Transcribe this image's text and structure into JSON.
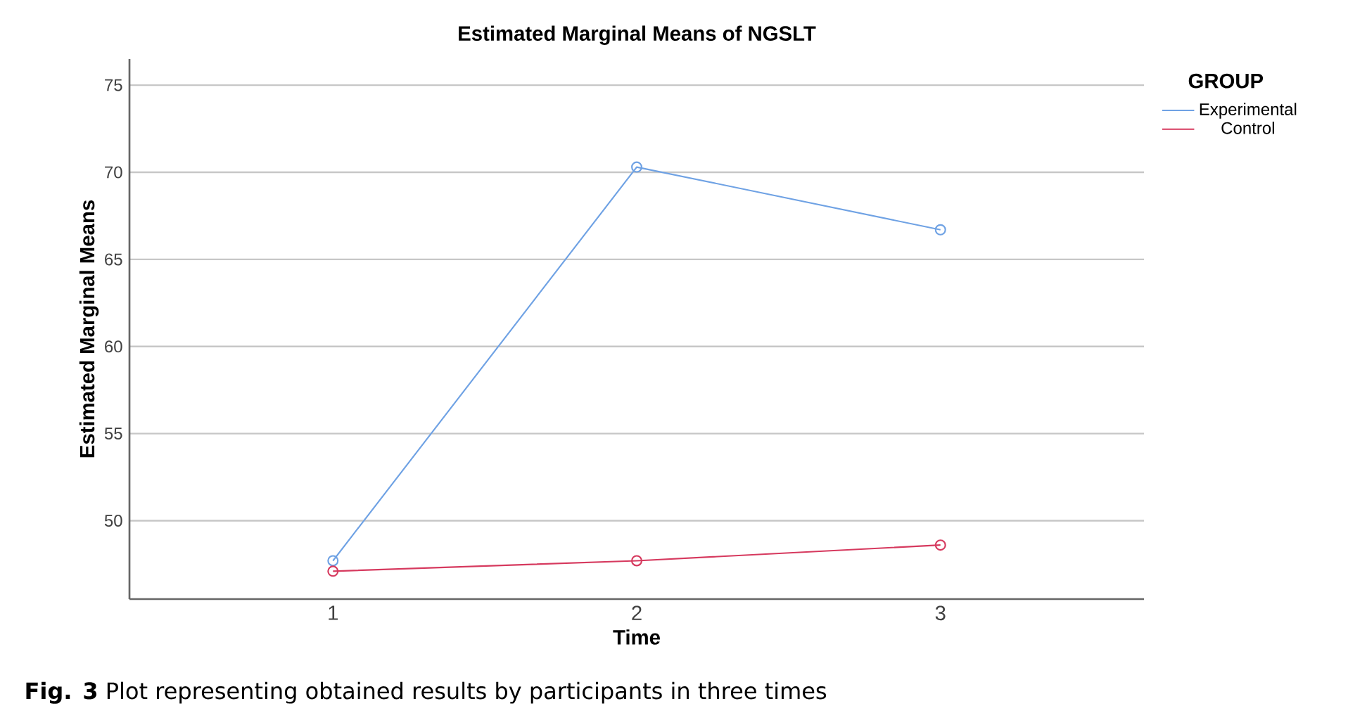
{
  "chart_data": {
    "type": "line",
    "title": "Estimated Marginal Means of NGSLT",
    "xlabel": "Time",
    "ylabel": "Estimated Marginal Means",
    "legend_title": "GROUP",
    "categories": [
      "1",
      "2",
      "3"
    ],
    "series": [
      {
        "name": "Experimental",
        "color": "#6fa2e4",
        "values": [
          47.7,
          70.3,
          66.7
        ]
      },
      {
        "name": "Control",
        "color": "#d6395e",
        "values": [
          47.1,
          47.7,
          48.6
        ]
      }
    ],
    "ylim": [
      45.5,
      76.5
    ],
    "yticks": [
      50,
      55,
      60,
      65,
      70,
      75
    ],
    "grid": "y",
    "legend": "top right",
    "marker": "circle",
    "line_style": "solid",
    "annotations": [
      "**Fig. 3** Plot representing obtained results by participants in three times"
    ]
  }
}
